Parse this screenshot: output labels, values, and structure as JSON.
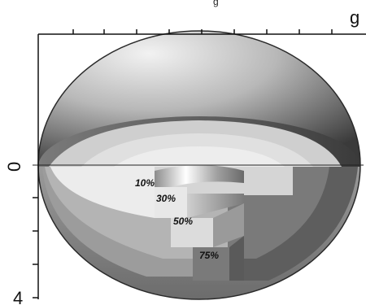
{
  "labels": {
    "top_partial_text": "g",
    "top_right_letter": "g",
    "axis_zero": "0",
    "axis_four": "4"
  },
  "contours": [
    {
      "label": "10%"
    },
    {
      "label": "30%"
    },
    {
      "label": "50%"
    },
    {
      "label": "75%"
    }
  ],
  "colors": {
    "shell_dark": "#3a3a3a",
    "shell_mid": "#6e6e6e",
    "inner_light": "#f2f2f2",
    "inner_grey": "#bdbdbd",
    "band_dark": "#4a4a4a"
  }
}
